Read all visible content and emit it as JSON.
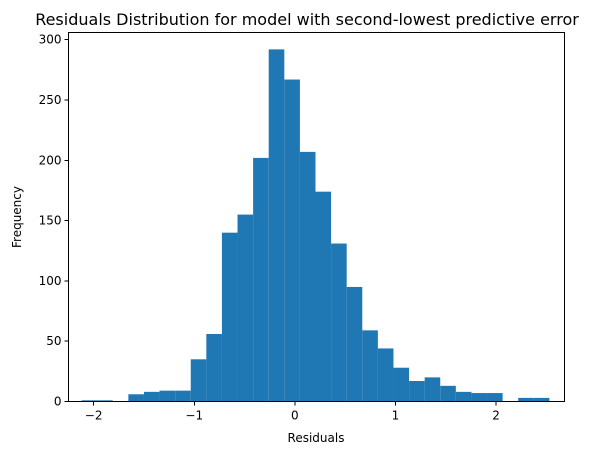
{
  "chart_data": {
    "type": "bar",
    "title": "Residuals Distribution for model with second-lowest predictive error",
    "xlabel": "Residuals",
    "ylabel": "Frequency",
    "xlim": [
      -2.25,
      2.68
    ],
    "ylim": [
      0,
      306
    ],
    "xticks": [
      -2,
      -1,
      0,
      1,
      2
    ],
    "yticks": [
      0,
      50,
      100,
      150,
      200,
      250,
      300
    ],
    "bin_start": -2.12,
    "bin_width": 0.155,
    "values": [
      1,
      1,
      0,
      6,
      8,
      9,
      9,
      35,
      56,
      140,
      155,
      202,
      292,
      267,
      207,
      174,
      131,
      95,
      59,
      44,
      28,
      17,
      20,
      13,
      8,
      7,
      7,
      0,
      3,
      3
    ],
    "color": "#1f77b4",
    "grid": false,
    "legend": "none"
  }
}
